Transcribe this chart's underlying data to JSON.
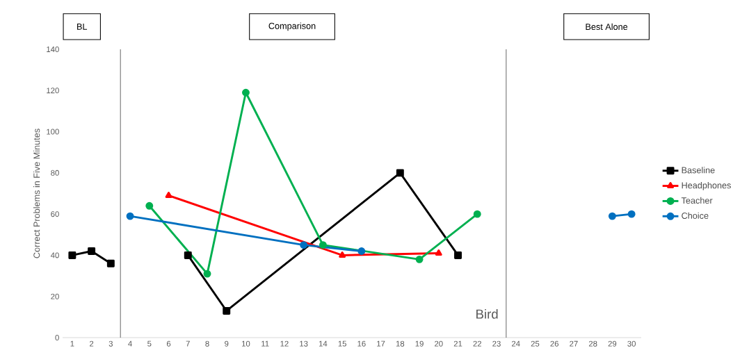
{
  "chart_data": {
    "type": "line",
    "ylabel": "Correct Problems in Five Minutes",
    "x": [
      1,
      2,
      3,
      4,
      5,
      6,
      7,
      8,
      9,
      10,
      11,
      12,
      13,
      14,
      15,
      16,
      17,
      18,
      19,
      20,
      21,
      22,
      23,
      24,
      25,
      26,
      27,
      28,
      29,
      30
    ],
    "series": [
      {
        "name": "Baseline",
        "color": "#000000",
        "marker": "square",
        "values": [
          40,
          42,
          36,
          null,
          null,
          null,
          40,
          null,
          13,
          null,
          null,
          null,
          null,
          null,
          null,
          null,
          null,
          80,
          null,
          null,
          40,
          null,
          null,
          null,
          null,
          null,
          null,
          null,
          null,
          null
        ]
      },
      {
        "name": "Headphones",
        "color": "#ff0000",
        "marker": "triangle",
        "values": [
          null,
          null,
          null,
          null,
          null,
          69,
          null,
          null,
          null,
          null,
          null,
          null,
          null,
          null,
          40,
          null,
          null,
          null,
          null,
          41,
          null,
          null,
          null,
          null,
          null,
          null,
          null,
          null,
          null,
          null
        ]
      },
      {
        "name": "Teacher",
        "color": "#00b050",
        "marker": "circle",
        "values": [
          null,
          null,
          null,
          null,
          64,
          null,
          null,
          31,
          null,
          119,
          null,
          null,
          null,
          45,
          null,
          null,
          null,
          null,
          38,
          null,
          null,
          60,
          null,
          null,
          null,
          null,
          null,
          null,
          null,
          null
        ]
      },
      {
        "name": "Choice",
        "color": "#0070c0",
        "marker": "circle",
        "values": [
          null,
          null,
          null,
          59,
          null,
          null,
          null,
          null,
          null,
          null,
          null,
          null,
          45,
          null,
          null,
          42,
          null,
          null,
          null,
          null,
          null,
          null,
          null,
          null,
          null,
          null,
          null,
          null,
          59,
          60
        ]
      }
    ],
    "xlim": [
      0.5,
      30.5
    ],
    "xticks": [
      1,
      2,
      3,
      4,
      5,
      6,
      7,
      8,
      9,
      10,
      11,
      12,
      13,
      14,
      15,
      16,
      17,
      18,
      19,
      20,
      21,
      22,
      23,
      24,
      25,
      26,
      27,
      28,
      29,
      30
    ],
    "ylim": [
      0,
      140
    ],
    "yticks": [
      0,
      20,
      40,
      60,
      80,
      100,
      120,
      140
    ],
    "ref_lines": [
      {
        "axis": "x",
        "value": 3.5,
        "color": "#404040"
      },
      {
        "axis": "x",
        "value": 23.5,
        "color": "#404040"
      }
    ],
    "annotations": [
      "BL",
      "Comparison",
      "Best Alone",
      "Bird"
    ],
    "legend": "right",
    "grid": false
  }
}
